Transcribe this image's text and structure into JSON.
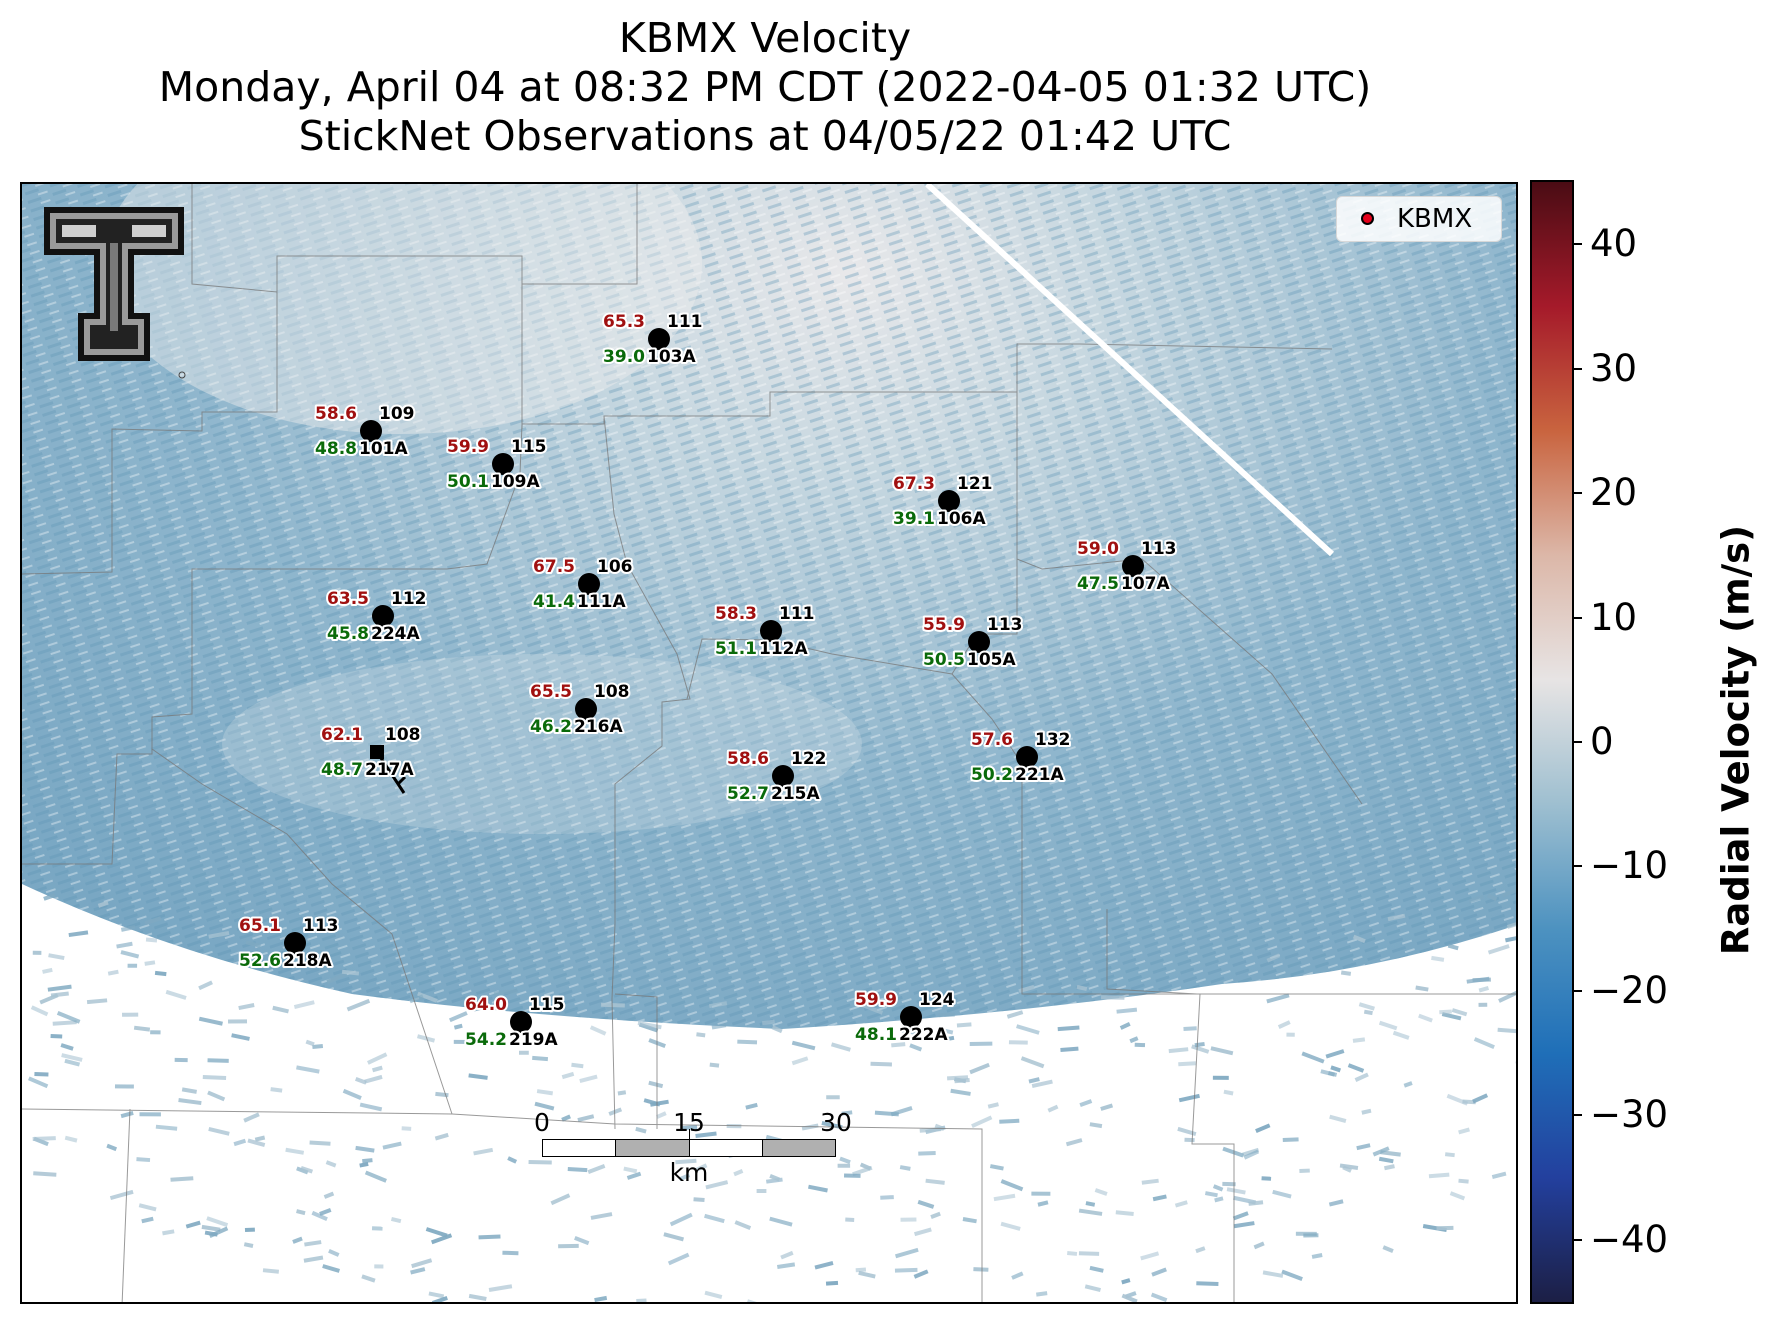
{
  "title": {
    "line1": "KBMX Velocity",
    "line2": "Monday, April 04 at 08:32 PM CDT (2022-04-05 01:32 UTC)",
    "line3": "StickNet Observations at 04/05/22 01:42 UTC"
  },
  "legend": {
    "label": "KBMX",
    "marker_color": "#e3001b"
  },
  "colorbar": {
    "label": "Radial Velocity (m/s)",
    "range": [
      -45,
      45
    ],
    "ticks": [
      {
        "value": 40,
        "label": "40"
      },
      {
        "value": 30,
        "label": "30"
      },
      {
        "value": 20,
        "label": "20"
      },
      {
        "value": 10,
        "label": "10"
      },
      {
        "value": 0,
        "label": "0"
      },
      {
        "value": -10,
        "label": "−10"
      },
      {
        "value": -20,
        "label": "−20"
      },
      {
        "value": -30,
        "label": "−30"
      },
      {
        "value": -40,
        "label": "−40"
      }
    ],
    "colors": [
      "#1c1f45",
      "#23409e",
      "#1f6fb8",
      "#4d92c0",
      "#9ebfd0",
      "#e7e4e4",
      "#dcb7a8",
      "#c9643f",
      "#a51a2a",
      "#4a0c14"
    ]
  },
  "scale_bar": {
    "labels": [
      "0",
      "15",
      "30"
    ],
    "unit": "km"
  },
  "logo": {
    "name": "Texas Tech Double T logo"
  },
  "stations": [
    {
      "id": "101A",
      "temp": "58.6",
      "dew": "48.8",
      "pressure": "109"
    },
    {
      "id": "103A",
      "temp": "65.3",
      "dew": "39.0",
      "pressure": "111"
    },
    {
      "id": "109A",
      "temp": "59.9",
      "dew": "50.1",
      "pressure": "115"
    },
    {
      "id": "106A",
      "temp": "67.3",
      "dew": "39.1",
      "pressure": "121"
    },
    {
      "id": "107A",
      "temp": "59.0",
      "dew": "47.5",
      "pressure": "113"
    },
    {
      "id": "224A",
      "temp": "63.5",
      "dew": "45.8",
      "pressure": "112"
    },
    {
      "id": "111A",
      "temp": "67.5",
      "dew": "41.4",
      "pressure": "106"
    },
    {
      "id": "112A",
      "temp": "58.3",
      "dew": "51.1",
      "pressure": "111"
    },
    {
      "id": "105A",
      "temp": "55.9",
      "dew": "50.5",
      "pressure": "113"
    },
    {
      "id": "216A",
      "temp": "65.5",
      "dew": "46.2",
      "pressure": "108"
    },
    {
      "id": "217A",
      "temp": "62.1",
      "dew": "48.7",
      "pressure": "108"
    },
    {
      "id": "215A",
      "temp": "58.6",
      "dew": "52.7",
      "pressure": "122"
    },
    {
      "id": "221A",
      "temp": "57.6",
      "dew": "50.2",
      "pressure": "132"
    },
    {
      "id": "218A",
      "temp": "65.1",
      "dew": "52.6",
      "pressure": "113"
    },
    {
      "id": "219A",
      "temp": "64.0",
      "dew": "54.2",
      "pressure": "115"
    },
    {
      "id": "222A",
      "temp": "59.9",
      "dew": "48.1",
      "pressure": "124"
    }
  ],
  "colors": {
    "temp": "#a01010",
    "dew": "#0a6a0a",
    "station": "#000000"
  }
}
